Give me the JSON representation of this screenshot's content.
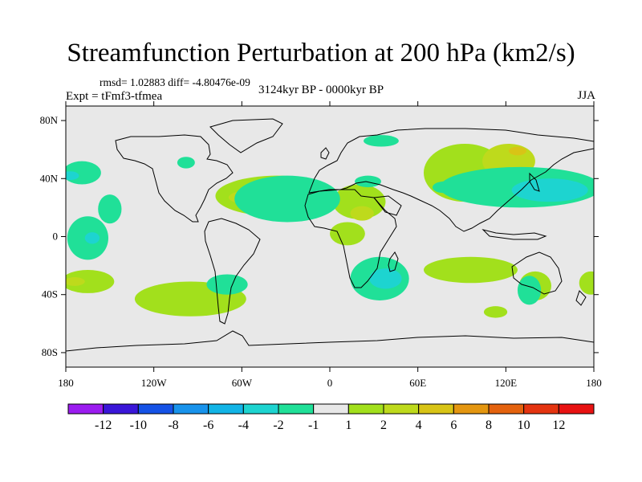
{
  "title": "Streamfunction Perturbation at 200 hPa (km2/s)",
  "stats": "rmsd= 1.02883 diff= -4.80476e-09",
  "experiment": "Expt = tFmf3-tfmea",
  "period": "3124kyr BP - 0000kyr BP",
  "season": "JJA",
  "chart_data": {
    "type": "heatmap",
    "projection": "cylindrical equidistant",
    "xlim": [
      -180,
      180
    ],
    "ylim": [
      -90,
      90
    ],
    "x_ticks": [
      {
        "value": -180,
        "label": "180"
      },
      {
        "value": -120,
        "label": "120W"
      },
      {
        "value": -60,
        "label": "60W"
      },
      {
        "value": 0,
        "label": "0"
      },
      {
        "value": 60,
        "label": "60E"
      },
      {
        "value": 120,
        "label": "120E"
      },
      {
        "value": 180,
        "label": "180"
      }
    ],
    "y_ticks": [
      {
        "value": 80,
        "label": "80N"
      },
      {
        "value": 40,
        "label": "40N"
      },
      {
        "value": 0,
        "label": "0"
      },
      {
        "value": -40,
        "label": "40S"
      },
      {
        "value": -80,
        "label": "80S"
      }
    ],
    "colorbar": {
      "labels": [
        "-12",
        "-10",
        "-8",
        "-6",
        "-4",
        "-2",
        "-1",
        "1",
        "2",
        "4",
        "6",
        "8",
        "10",
        "12"
      ],
      "colors": [
        "#9B1CF0",
        "#3A16D8",
        "#1552E6",
        "#1893EC",
        "#12B4E6",
        "#1DD4D0",
        "#20E098",
        "#E8E8E8",
        "#A2E01C",
        "#BEDA1C",
        "#D8C416",
        "#E49610",
        "#E4620E",
        "#E43410",
        "#E81212"
      ]
    },
    "anomaly_regions": [
      {
        "lon": -95,
        "lat": -43,
        "rlon": 38,
        "rlat": 12,
        "level": "1 to 2",
        "color": "#A2E01C"
      },
      {
        "lon": -165,
        "lat": -31,
        "rlon": 18,
        "rlat": 8,
        "level": "1 to 2",
        "color": "#A2E01C"
      },
      {
        "lon": -174,
        "lat": -31,
        "rlon": 7,
        "rlat": 3,
        "level": "2 to 4",
        "color": "#BEDA1C"
      },
      {
        "lon": -36,
        "lat": 28,
        "rlon": 42,
        "rlat": 14,
        "level": "1 to 2",
        "color": "#A2E01C"
      },
      {
        "lon": -45,
        "lat": 27,
        "rlon": 24,
        "rlat": 6,
        "level": "2 to 4",
        "color": "#BEDA1C"
      },
      {
        "lon": 20,
        "lat": 24,
        "rlon": 18,
        "rlat": 12,
        "level": "1 to 2",
        "color": "#A2E01C"
      },
      {
        "lon": 22,
        "lat": 16,
        "rlon": 8,
        "rlat": 5,
        "level": "2 to 4",
        "color": "#BEDA1C"
      },
      {
        "lon": 12,
        "lat": 2,
        "rlon": 12,
        "rlat": 8,
        "level": "1 to 2",
        "color": "#A2E01C"
      },
      {
        "lon": 92,
        "lat": 44,
        "rlon": 28,
        "rlat": 20,
        "level": "1 to 2",
        "color": "#A2E01C"
      },
      {
        "lon": 122,
        "lat": 52,
        "rlon": 18,
        "rlat": 12,
        "level": "2 to 4",
        "color": "#BEDA1C"
      },
      {
        "lon": 128,
        "lat": 59,
        "rlon": 6,
        "rlat": 3,
        "level": "4 to 6",
        "color": "#D8C416"
      },
      {
        "lon": 96,
        "lat": -23,
        "rlon": 32,
        "rlat": 9,
        "level": "1 to 2",
        "color": "#A2E01C"
      },
      {
        "lon": 140,
        "lat": -34,
        "rlon": 11,
        "rlat": 10,
        "level": "1 to 2",
        "color": "#A2E01C"
      },
      {
        "lon": 113,
        "lat": -52,
        "rlon": 8,
        "rlat": 4,
        "level": "1 to 2",
        "color": "#A2E01C"
      },
      {
        "lon": 178,
        "lat": -32,
        "rlon": 8,
        "rlat": 8,
        "level": "1 to 2",
        "color": "#A2E01C"
      },
      {
        "lon": -169,
        "lat": 44,
        "rlon": 13,
        "rlat": 8,
        "level": "-1 to -2",
        "color": "#20E098"
      },
      {
        "lon": -177,
        "lat": 42,
        "rlon": 6,
        "rlat": 3,
        "level": "-2 to -4",
        "color": "#1DD4D0"
      },
      {
        "lon": -150,
        "lat": 19,
        "rlon": 8,
        "rlat": 10,
        "level": "-1 to -2",
        "color": "#20E098"
      },
      {
        "lon": -165,
        "lat": -1,
        "rlon": 14,
        "rlat": 15,
        "level": "-1 to -2",
        "color": "#20E098"
      },
      {
        "lon": -162,
        "lat": -1,
        "rlon": 5,
        "rlat": 4,
        "level": "-2 to -4",
        "color": "#1DD4D0"
      },
      {
        "lon": -98,
        "lat": 51,
        "rlon": 6,
        "rlat": 4,
        "level": "-1 to -2",
        "color": "#20E098"
      },
      {
        "lon": -29,
        "lat": 26,
        "rlon": 36,
        "rlat": 16,
        "level": "-1 to -2",
        "color": "#20E098"
      },
      {
        "lon": 26,
        "lat": 38,
        "rlon": 9,
        "rlat": 4,
        "level": "-1 to -2",
        "color": "#20E098"
      },
      {
        "lon": 35,
        "lat": 66,
        "rlon": 12,
        "rlat": 4,
        "level": "-1 to -2",
        "color": "#20E098"
      },
      {
        "lon": 78,
        "lat": 34,
        "rlon": 8,
        "rlat": 4,
        "level": "-1 to -2",
        "color": "#20E098"
      },
      {
        "lon": -70,
        "lat": -33,
        "rlon": 14,
        "rlat": 7,
        "level": "-1 to -2",
        "color": "#20E098"
      },
      {
        "lon": 34,
        "lat": -29,
        "rlon": 20,
        "rlat": 15,
        "level": "-1 to -2",
        "color": "#20E098"
      },
      {
        "lon": 38,
        "lat": -29,
        "rlon": 11,
        "rlat": 7,
        "level": "-2 to -4",
        "color": "#1DD4D0"
      },
      {
        "lon": 130,
        "lat": 34,
        "rlon": 55,
        "rlat": 14,
        "level": "-1 to -2",
        "color": "#20E098"
      },
      {
        "lon": 150,
        "lat": 32,
        "rlon": 26,
        "rlat": 8,
        "level": "-2 to -4",
        "color": "#1DD4D0"
      },
      {
        "lon": 136,
        "lat": -37,
        "rlon": 8,
        "rlat": 10,
        "level": "-1 to -2",
        "color": "#20E098"
      }
    ]
  }
}
